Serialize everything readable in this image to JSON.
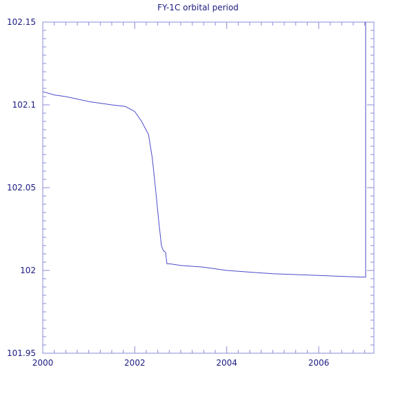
{
  "chart_data": {
    "type": "line",
    "title": "FY-1C orbital period",
    "xlabel": "",
    "ylabel": "",
    "xlim": [
      2000,
      2007.2
    ],
    "ylim": [
      101.95,
      102.15
    ],
    "xticks": [
      2000,
      2002,
      2004,
      2006
    ],
    "xtick_labels": [
      "2000",
      "2002",
      "2004",
      "2006"
    ],
    "yticks": [
      101.95,
      102,
      102.05,
      102.1,
      102.15
    ],
    "ytick_labels": [
      "101.95",
      "102",
      "102.05",
      "102.1",
      "102.15"
    ],
    "grid": false,
    "legend": "none",
    "colors": {
      "line": "#4a4ac8",
      "axes": "#8a8ad8",
      "text": "#1a1a80"
    },
    "series": [
      {
        "x": [
          2000.0,
          2000.25,
          2000.5,
          2001.0,
          2001.5,
          2001.8,
          2002.0,
          2002.15,
          2002.3,
          2002.38,
          2002.45,
          2002.52,
          2002.58,
          2002.62,
          2002.67,
          2002.7,
          2002.73,
          2002.76,
          2003.0,
          2003.5,
          2004.0,
          2005.0,
          2006.0,
          2006.9,
          2007.02,
          2007.02
        ],
        "y": [
          102.108,
          102.106,
          102.105,
          102.102,
          102.1,
          102.099,
          102.096,
          102.09,
          102.082,
          102.068,
          102.05,
          102.03,
          102.015,
          102.012,
          102.011,
          102.004,
          102.004,
          102.004,
          102.003,
          102.002,
          102.0,
          101.998,
          101.997,
          101.996,
          101.996,
          102.15
        ]
      }
    ]
  }
}
